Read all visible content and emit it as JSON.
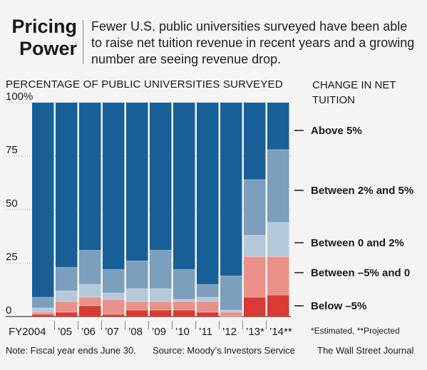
{
  "header": {
    "title_line1": "Pricing",
    "title_line2": "Power",
    "subtitle": "Fewer U.S. public universities surveyed have been able to raise net tuition revenue in recent years and a growing number are seeing revenue drop."
  },
  "footer": {
    "note": "Note: Fiscal year ends June 30.",
    "source": "Source: Moody’s Investors Service",
    "credit": "The Wall Street Journal"
  },
  "chart_data": {
    "type": "bar",
    "stacked": true,
    "ylabel": "PERCENTAGE OF PUBLIC UNIVERSITIES SURVEYED",
    "legend_title": "CHANGE IN NET TUITION",
    "categories": [
      "FY2004",
      "’05",
      "’06",
      "’07",
      "’08",
      "’09",
      "’10",
      "’11",
      "’12",
      "’13*",
      "’14**"
    ],
    "yticks": [
      "100%",
      "75",
      "50",
      "25",
      "0"
    ],
    "ylim": [
      0,
      100
    ],
    "footnote": "*Estimated, **Projected",
    "series": [
      {
        "name": "Below –5%",
        "color": "#d93a34",
        "values": [
          1,
          2,
          5,
          1,
          3,
          3,
          3,
          2,
          0,
          9,
          10
        ]
      },
      {
        "name": "Between –5% and 0",
        "color": "#eb9088",
        "values": [
          1,
          5,
          4,
          7,
          4,
          4,
          4,
          5,
          2,
          19,
          18
        ]
      },
      {
        "name": "Between 0 and 2%",
        "color": "#b3c9d9",
        "values": [
          2,
          5,
          6,
          3,
          6,
          6,
          1,
          2,
          1,
          10,
          16
        ]
      },
      {
        "name": "Between 2% and 5%",
        "color": "#7b9fbc",
        "values": [
          5,
          11,
          16,
          11,
          13,
          18,
          14,
          6,
          16,
          26,
          34
        ]
      },
      {
        "name": "Above 5%",
        "color": "#185f98",
        "values": [
          91,
          77,
          69,
          78,
          74,
          69,
          78,
          85,
          81,
          36,
          22
        ]
      }
    ],
    "legend_anchor_pct": [
      5,
      20.5,
      34.5,
      59,
      87
    ]
  }
}
